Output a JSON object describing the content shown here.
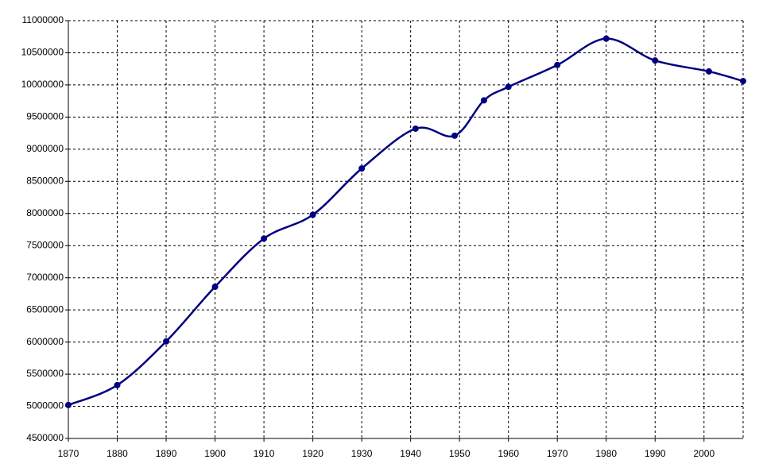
{
  "chart_data": {
    "type": "line",
    "x": [
      1870,
      1880,
      1890,
      1900,
      1910,
      1920,
      1930,
      1941,
      1949,
      1955,
      1960,
      1970,
      1980,
      1990,
      2001,
      2008
    ],
    "series": [
      {
        "color": "#000080",
        "values": [
          5020000,
          5330000,
          6010000,
          6860000,
          7610000,
          7980000,
          8700000,
          9320000,
          9210000,
          9760000,
          9970000,
          10310000,
          10720000,
          10380000,
          10210000,
          10060000
        ]
      }
    ],
    "xlim": [
      1870,
      2008
    ],
    "xticks": [
      1870,
      1880,
      1890,
      1900,
      1910,
      1920,
      1930,
      1940,
      1950,
      1960,
      1970,
      1980,
      1990,
      2000
    ],
    "ylim": [
      4500000,
      11000000
    ],
    "yticks": [
      4500000,
      5000000,
      5500000,
      6000000,
      6500000,
      7000000,
      7500000,
      8000000,
      8500000,
      9000000,
      9500000,
      10000000,
      10500000,
      11000000
    ],
    "grid": true,
    "smooth": true
  }
}
